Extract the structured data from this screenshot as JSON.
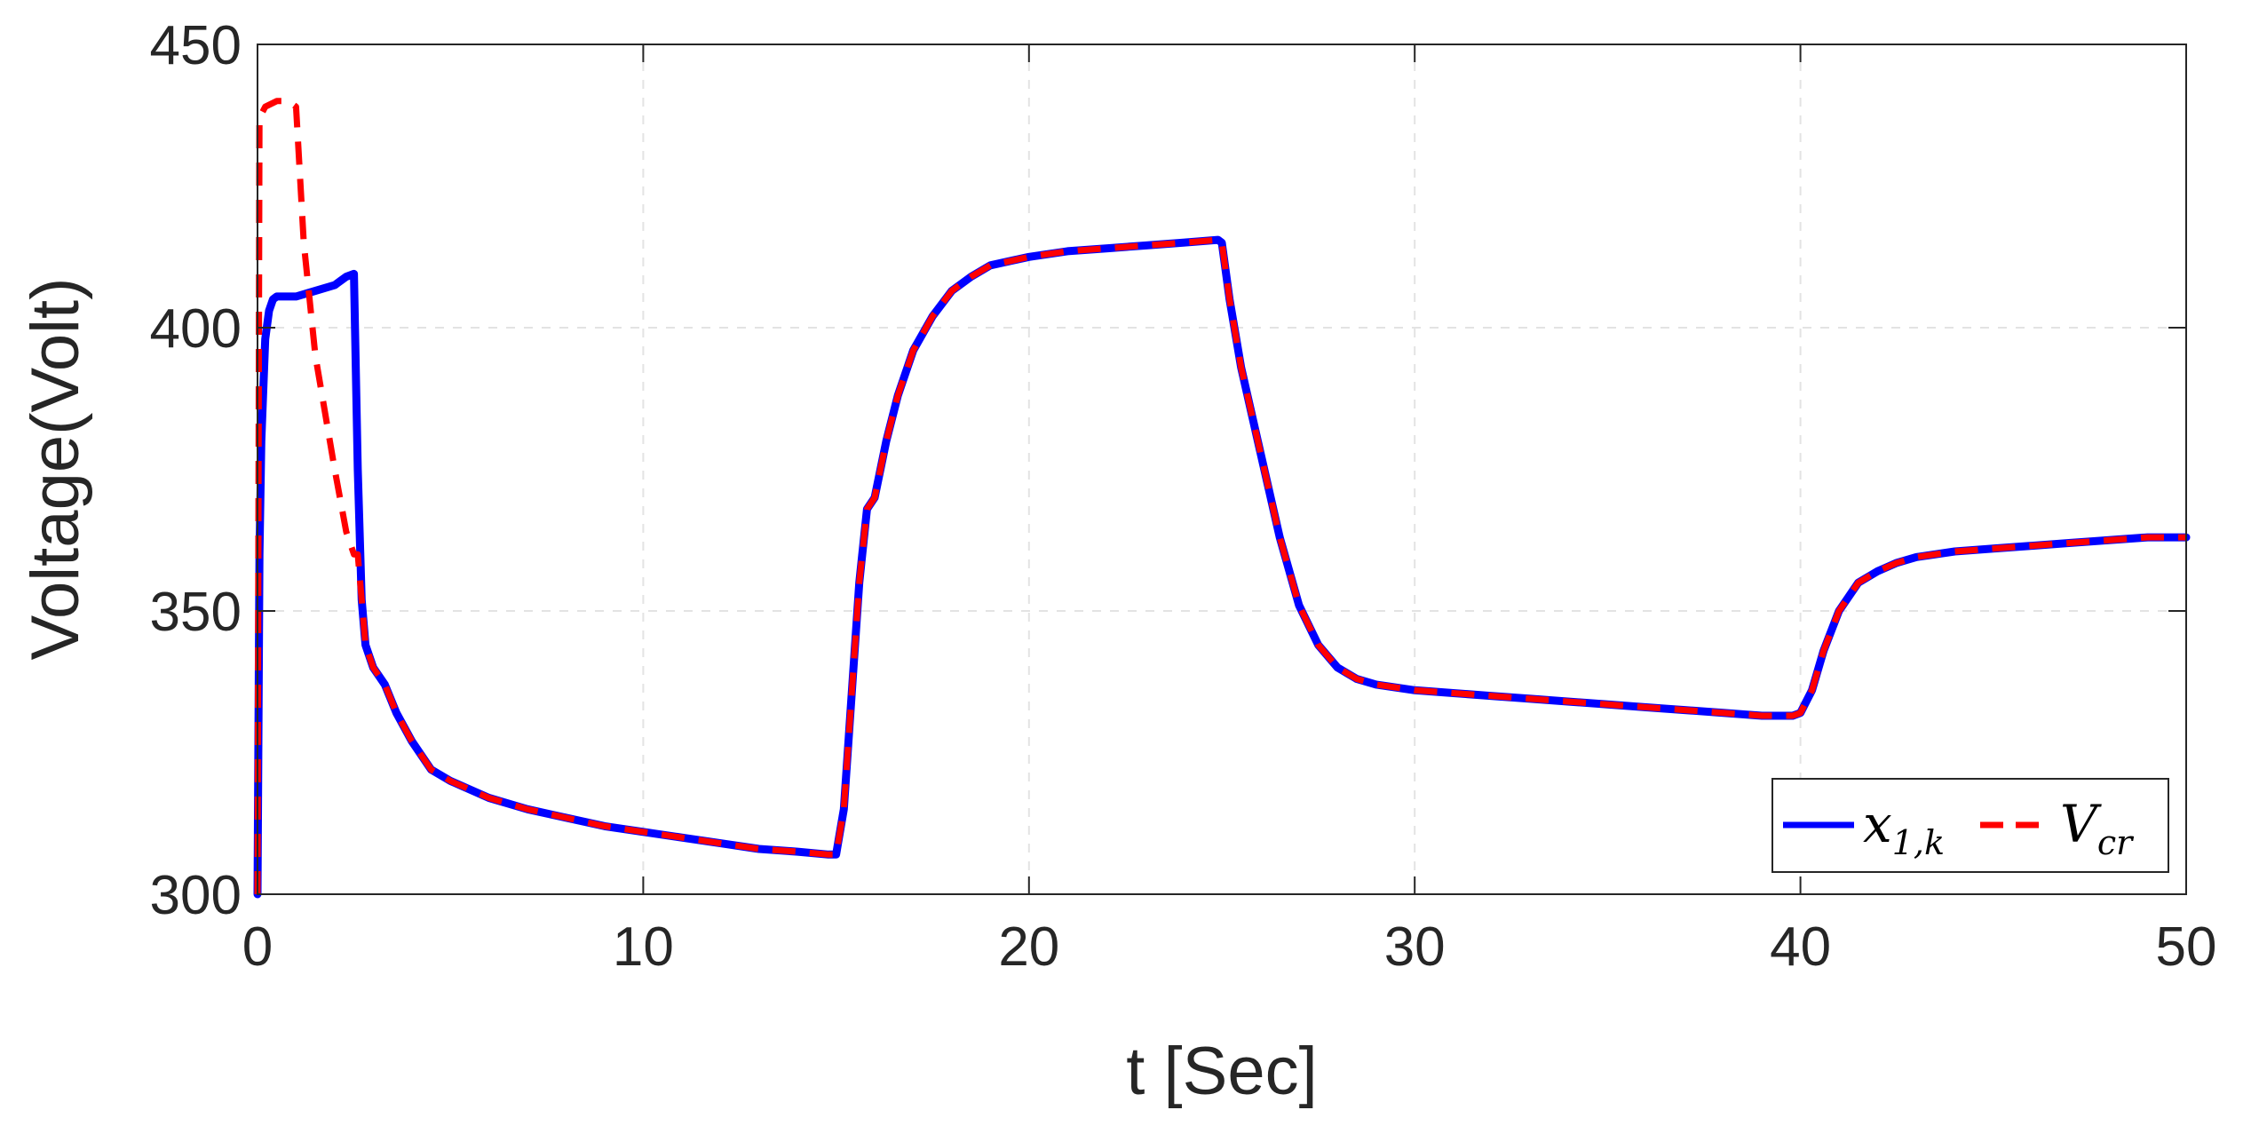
{
  "chart_data": {
    "type": "line",
    "xlabel": "t [Sec]",
    "ylabel": "Voltage(Volt)",
    "xlim": [
      0,
      50
    ],
    "ylim": [
      300,
      450
    ],
    "xticks": [
      "0",
      "10",
      "20",
      "30",
      "40",
      "50"
    ],
    "yticks": [
      "300",
      "350",
      "400",
      "450"
    ],
    "grid": true,
    "legend_position": "bottom-right",
    "series": [
      {
        "name": "x1,k",
        "legend_main": "x",
        "legend_sub": "1,k",
        "color": "#0000FF",
        "style": "solid",
        "x": [
          0,
          0.05,
          0.1,
          0.2,
          0.3,
          0.4,
          0.5,
          1.0,
          1.5,
          2.0,
          2.3,
          2.5,
          2.6,
          2.7,
          2.8,
          3.0,
          3.3,
          3.6,
          4.0,
          4.5,
          5,
          6,
          7,
          8,
          9,
          10,
          11,
          12,
          13,
          14,
          14.8,
          15.0,
          15.2,
          15.4,
          15.6,
          15.8,
          16.0,
          16.3,
          16.6,
          17.0,
          17.5,
          18.0,
          18.5,
          19.0,
          20,
          21,
          22,
          23,
          24,
          24.9,
          25.0,
          25.2,
          25.5,
          26.0,
          26.5,
          27.0,
          27.5,
          28.0,
          28.5,
          29.0,
          30,
          31,
          32,
          33,
          34,
          35,
          36,
          37,
          38,
          39,
          39.8,
          40.0,
          40.3,
          40.6,
          41.0,
          41.5,
          42.0,
          42.5,
          43,
          44,
          45,
          46,
          47,
          48,
          49,
          50
        ],
        "y": [
          300,
          360,
          380,
          398,
          403,
          405,
          405.5,
          405.5,
          406.5,
          407.5,
          409,
          409.5,
          375,
          352,
          344,
          340,
          337,
          332,
          327,
          322,
          320,
          317,
          315,
          313.5,
          312,
          311,
          310,
          309,
          308,
          307.5,
          307,
          307,
          315,
          335,
          355,
          368,
          370,
          380,
          388,
          396,
          402,
          406.5,
          409,
          411,
          412.5,
          413.5,
          414,
          414.5,
          415,
          415.5,
          415,
          405,
          393,
          378,
          363,
          351,
          344,
          340,
          338,
          337,
          336,
          335.5,
          335,
          334.5,
          334,
          333.5,
          333,
          332.5,
          332,
          331.5,
          331.5,
          332,
          336,
          343,
          350,
          355,
          357,
          358.5,
          359.5,
          360.5,
          361,
          361.5,
          362,
          362.5,
          363,
          363
        ]
      },
      {
        "name": "Vcr",
        "legend_main": "V",
        "legend_sub": "cr",
        "color": "#FF0000",
        "style": "dashed",
        "x": [
          0,
          0.05,
          0.2,
          0.5,
          0.8,
          1.0,
          1.2,
          1.5,
          2.0,
          2.3,
          2.5,
          2.6,
          2.7,
          2.8,
          3.0,
          3.3,
          3.6,
          4.0,
          4.5,
          5,
          6,
          7,
          8,
          9,
          10,
          11,
          12,
          13,
          14,
          14.8,
          15.0,
          15.2,
          15.4,
          15.6,
          15.8,
          16.0,
          16.3,
          16.6,
          17.0,
          17.5,
          18.0,
          18.5,
          19.0,
          20,
          21,
          22,
          23,
          24,
          24.9,
          25.0,
          25.2,
          25.5,
          26.0,
          26.5,
          27.0,
          27.5,
          28.0,
          28.5,
          29.0,
          30,
          31,
          32,
          33,
          34,
          35,
          36,
          37,
          38,
          39,
          39.8,
          40.0,
          40.3,
          40.6,
          41.0,
          41.5,
          42.0,
          42.5,
          43,
          44,
          45,
          46,
          47,
          48,
          49,
          50
        ],
        "y": [
          300,
          437,
          439,
          440,
          440,
          439,
          415,
          395,
          375,
          364,
          360,
          360,
          352,
          344,
          340,
          337,
          332,
          327,
          322,
          320,
          317,
          315,
          313.5,
          312,
          311,
          310,
          309,
          308,
          307.5,
          307,
          307,
          315,
          335,
          355,
          368,
          370,
          380,
          388,
          396,
          402,
          406.5,
          409,
          411,
          412.5,
          413.5,
          414,
          414.5,
          415,
          415.5,
          415,
          405,
          393,
          378,
          363,
          351,
          344,
          340,
          338,
          337,
          336,
          335.5,
          335,
          334.5,
          334,
          333.5,
          333,
          332.5,
          332,
          331.5,
          331.5,
          332,
          336,
          343,
          350,
          355,
          357,
          358.5,
          359.5,
          360.5,
          361,
          361.5,
          362,
          362.5,
          363,
          363
        ]
      }
    ]
  }
}
